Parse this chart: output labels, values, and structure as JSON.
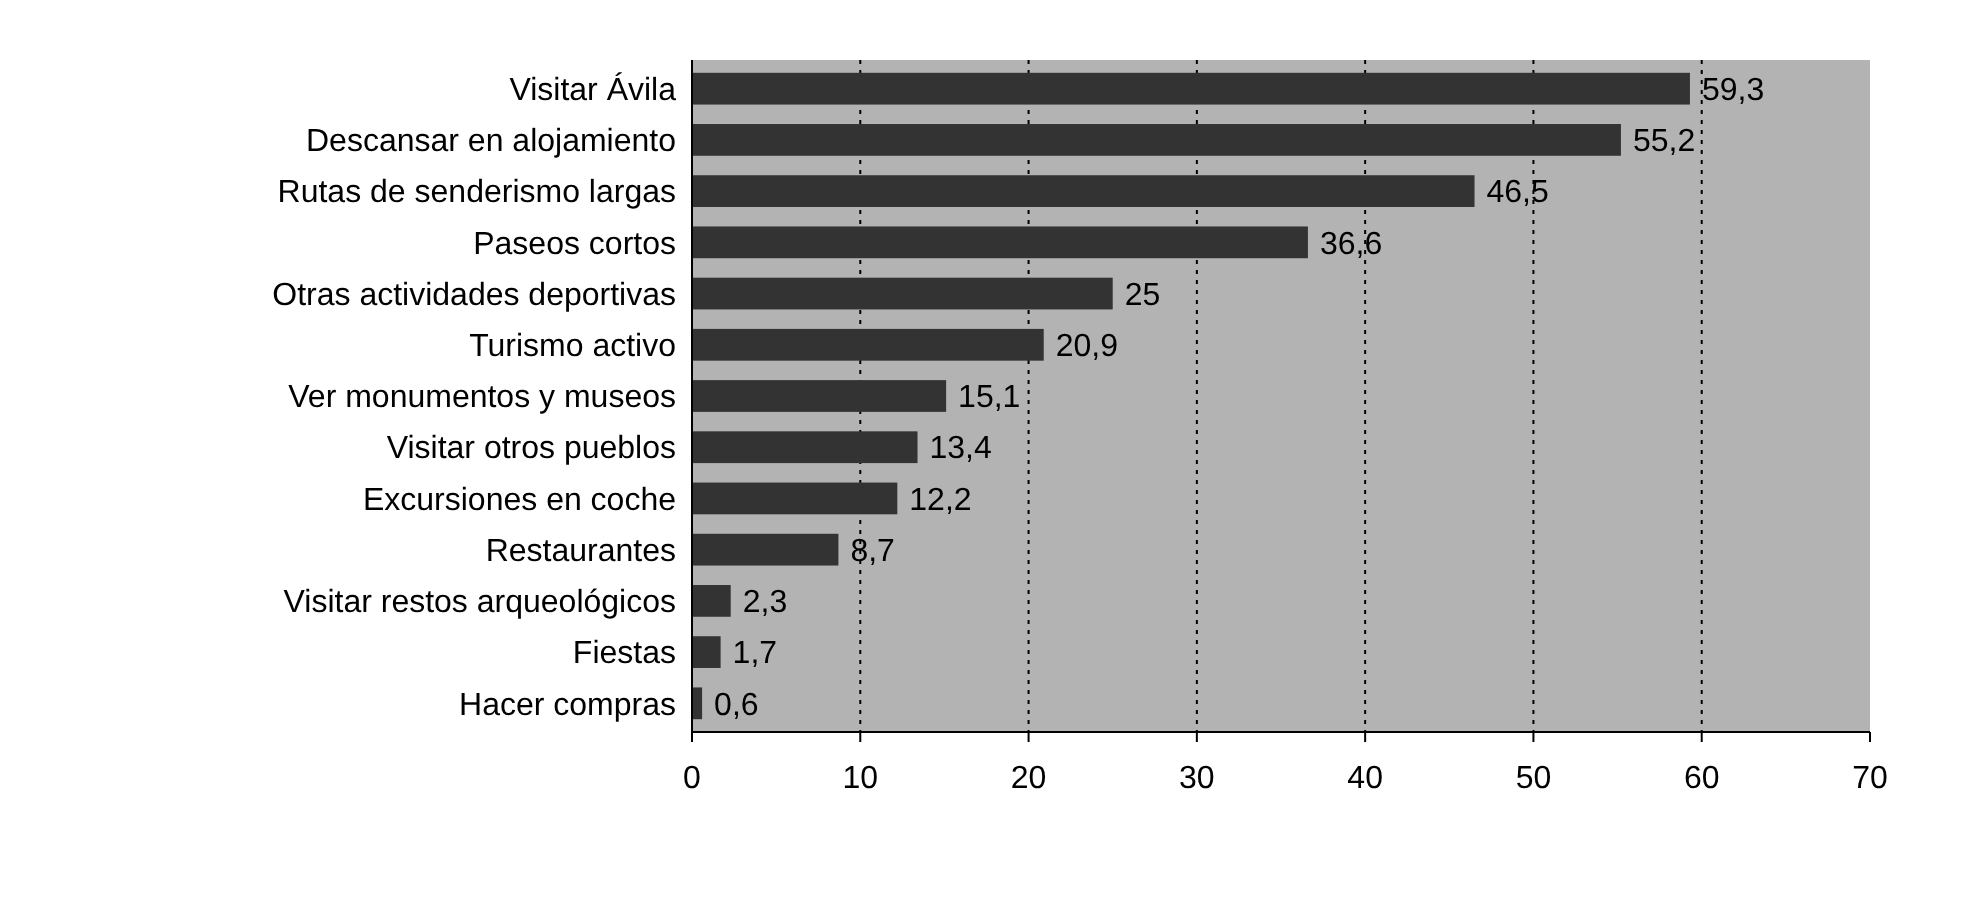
{
  "chart_data": {
    "type": "bar",
    "orientation": "horizontal",
    "categories": [
      "Visitar Ávila",
      "Descansar en alojamiento",
      "Rutas de senderismo largas",
      "Paseos cortos",
      "Otras actividades deportivas",
      "Turismo activo",
      "Ver monumentos y museos",
      "Visitar otros pueblos",
      "Excursiones en coche",
      "Restaurantes",
      "Visitar restos arqueológicos",
      "Fiestas",
      "Hacer compras"
    ],
    "values": [
      59.3,
      55.2,
      46.5,
      36.6,
      25,
      20.9,
      15.1,
      13.4,
      12.2,
      8.7,
      2.3,
      1.7,
      0.6
    ],
    "value_labels": [
      "59,3",
      "55,2",
      "46,5",
      "36,6",
      "25",
      "20,9",
      "15,1",
      "13,4",
      "12,2",
      "8,7",
      "2,3",
      "1,7",
      "0,6"
    ],
    "color": "#333333",
    "xlim": [
      0,
      70
    ],
    "xticks": [
      0,
      10,
      20,
      30,
      40,
      50,
      60,
      70
    ],
    "grid": "x"
  }
}
